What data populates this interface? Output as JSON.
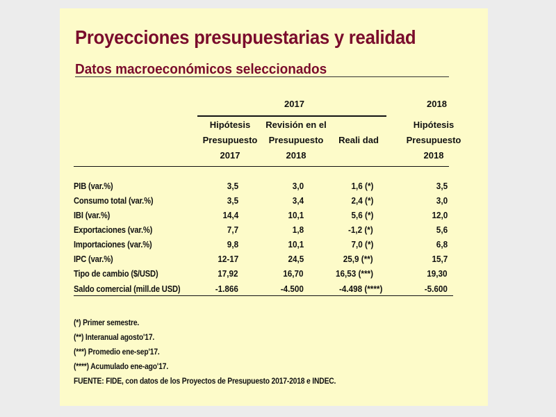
{
  "title": "Proyecciones presupuestarias y realidad",
  "subtitle": "Datos macroeconómicos seleccionados",
  "years": {
    "y2017": "2017",
    "y2018": "2018"
  },
  "columns": [
    {
      "lines": [
        "Hipótesis",
        "Presupuesto",
        "2017"
      ]
    },
    {
      "lines": [
        "Revisión en el",
        "Presupuesto",
        "2018"
      ]
    },
    {
      "lines": [
        "Reali dad"
      ]
    },
    {
      "lines": [
        "Hipótesis",
        "Presupuesto",
        "2018"
      ]
    }
  ],
  "rows": [
    {
      "label": "PIB (var.%)",
      "values": [
        "3,5",
        "3,0",
        "1,6 (*)",
        "3,5"
      ]
    },
    {
      "label": "Consumo total (var.%)",
      "values": [
        "3,5",
        "3,4",
        "2,4 (*)",
        "3,0"
      ]
    },
    {
      "label": "IBI (var.%)",
      "values": [
        "14,4",
        "10,1",
        "5,6 (*)",
        "12,0"
      ]
    },
    {
      "label": "Exportaciones (var.%)",
      "values": [
        "7,7",
        "1,8",
        "-1,2 (*)",
        "5,6"
      ]
    },
    {
      "label": "Importaciones (var.%)",
      "values": [
        "9,8",
        "10,1",
        "7,0 (*)",
        "6,8"
      ]
    },
    {
      "label": "IPC (var.%)",
      "values": [
        "12-17",
        "24,5",
        "25,9 (**)",
        "15,7"
      ]
    },
    {
      "label": "Tipo de cambio ($/USD)",
      "values": [
        "17,92",
        "16,70",
        "16,53 (***)",
        "19,30"
      ]
    },
    {
      "label": "Saldo comercial (mill.de USD)",
      "values": [
        "-1.866",
        "-4.500",
        "-4.498 (****)",
        "-5.600"
      ]
    }
  ],
  "notes": [
    "(*) Primer semestre.",
    "(**) Interanual agosto'17.",
    "(***) Promedio ene-sep'17.",
    "(****) Acumulado ene-ago'17.",
    "FUENTE: FIDE, con datos de los Proyectos de Presupuesto 2017-2018 e INDEC."
  ]
}
